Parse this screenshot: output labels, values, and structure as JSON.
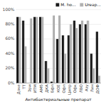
{
  "chart_data": {
    "type": "bar",
    "xlabel": "Антибактериальные препарат",
    "categories": [
      "Доке",
      "ТТ",
      "Эри",
      "ИТМ",
      "АМб",
      "ДКА",
      "Бфл",
      "КОЕ",
      "Офл",
      "Ципр",
      "Офк",
      "ЛВО",
      "Азу",
      "Лин",
      "ДОФ"
    ],
    "series": [
      {
        "name": "M. ho...",
        "color": "#1a1a1a",
        "values": [
          90,
          85,
          0,
          90,
          90,
          30,
          2,
          60,
          65,
          65,
          85,
          80,
          80,
          40,
          70
        ]
      },
      {
        "name": "Ureap...",
        "color": "#b0b0b0",
        "values": [
          90,
          50,
          88,
          90,
          90,
          20,
          92,
          92,
          40,
          80,
          75,
          85,
          85,
          20,
          10
        ]
      }
    ],
    "ylim": [
      0,
      100
    ],
    "yticks": [
      {
        "value": 0,
        "label": "0%"
      },
      {
        "value": 20,
        "label": "20%"
      },
      {
        "value": 40,
        "label": "40%"
      },
      {
        "value": 60,
        "label": "60%"
      },
      {
        "value": 80,
        "label": "80%"
      },
      {
        "value": 100,
        "label": "100%"
      }
    ],
    "grid": true,
    "legend": "upper right"
  }
}
